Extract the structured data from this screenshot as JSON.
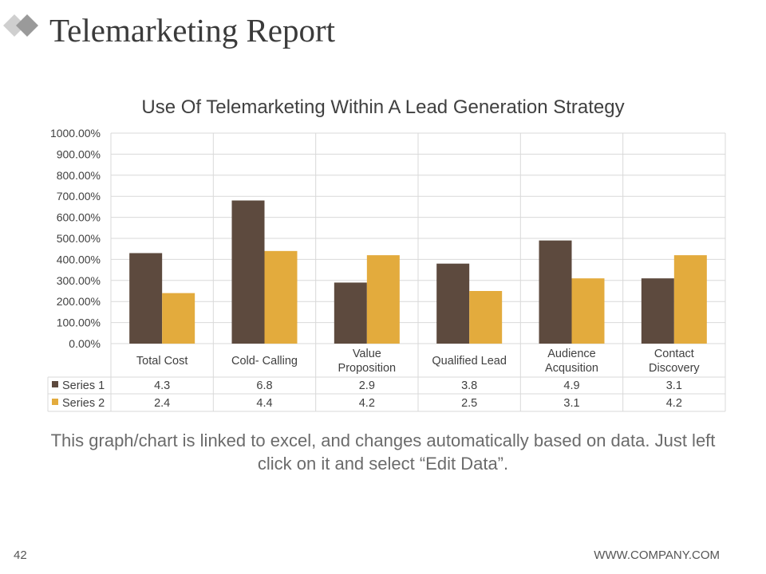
{
  "slide": {
    "title": "Telemarketing Report",
    "footnote": "This graph/chart is linked to excel, and changes automatically based on data. Just left click on it and select “Edit Data”.",
    "page_number": "42",
    "company": "WWW.COMPANY.COM"
  },
  "colors": {
    "series1": "#5d4a3e",
    "series2": "#e3ab3d",
    "grid": "#d9d9d9"
  },
  "chart_data": {
    "type": "bar",
    "title": "Use Of Telemarketing Within A Lead Generation Strategy",
    "categories": [
      [
        "Total Cost"
      ],
      [
        "Cold- Calling"
      ],
      [
        "Value",
        "Proposition"
      ],
      [
        "Qualified Lead"
      ],
      [
        "Audience",
        "Acqusition"
      ],
      [
        "Contact",
        "Discovery"
      ]
    ],
    "series": [
      {
        "name": "Series 1",
        "values": [
          4.3,
          6.8,
          2.9,
          3.8,
          4.9,
          3.1
        ],
        "display": [
          "4.3",
          "6.8",
          "2.9",
          "3.8",
          "4.9",
          "3.1"
        ]
      },
      {
        "name": "Series 2",
        "values": [
          2.4,
          4.4,
          4.2,
          2.5,
          3.1,
          4.2
        ],
        "display": [
          "2.4",
          "4.4",
          "4.2",
          "2.5",
          "3.1",
          "4.2"
        ]
      }
    ],
    "ylim": [
      0,
      10
    ],
    "yticks": [
      "0.00%",
      "100.00%",
      "200.00%",
      "300.00%",
      "400.00%",
      "500.00%",
      "600.00%",
      "700.00%",
      "800.00%",
      "900.00%",
      "1000.00%"
    ],
    "xlabel": "",
    "ylabel": "",
    "data_table": true
  }
}
